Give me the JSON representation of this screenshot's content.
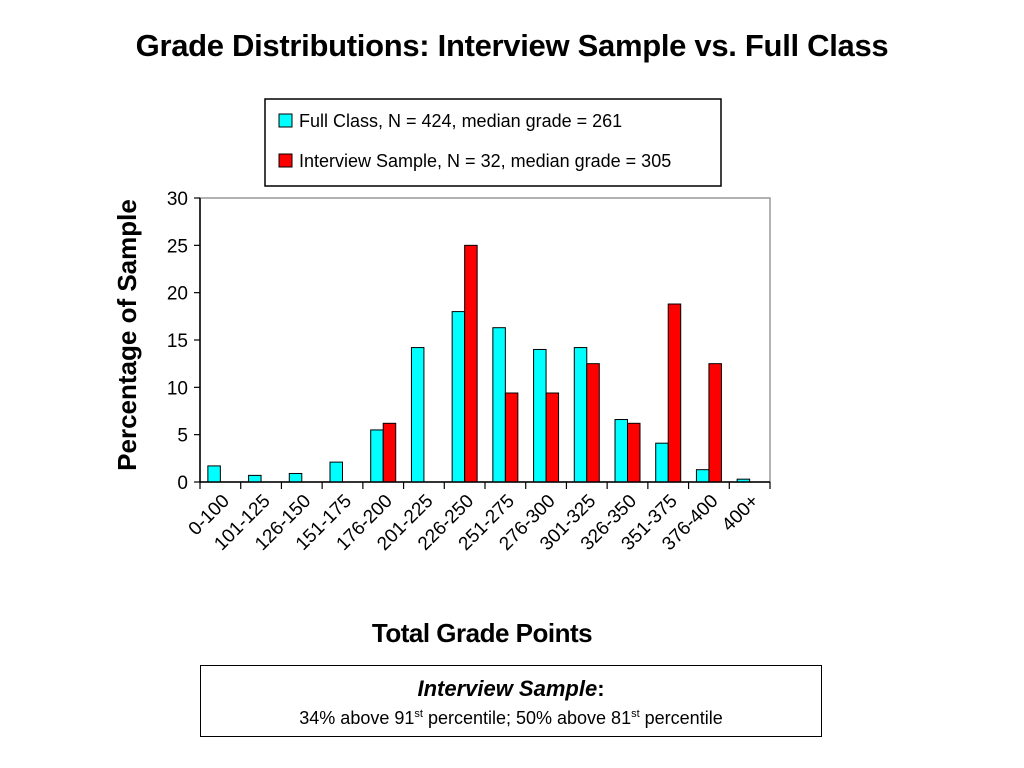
{
  "slide": {
    "title": "Grade Distributions: Interview Sample vs. Full Class"
  },
  "note": {
    "heading": "Interview Sample",
    "heading_colon": ":",
    "part1": "34% above 91",
    "sup1": "st",
    "part2": " percentile; 50% above 81",
    "sup2": "st",
    "part3": " percentile"
  },
  "chart_data": {
    "type": "bar",
    "title": "",
    "xlabel": "Total Grade Points",
    "ylabel": "Percentage of Sample",
    "ylim": [
      0,
      30
    ],
    "yticks": [
      0,
      5,
      10,
      15,
      20,
      25,
      30
    ],
    "grid": false,
    "legend_position": "top",
    "categories": [
      "0-100",
      "101-125",
      "126-150",
      "151-175",
      "176-200",
      "201-225",
      "226-250",
      "251-275",
      "276-300",
      "301-325",
      "326-350",
      "351-375",
      "376-400",
      "400+"
    ],
    "series": [
      {
        "name": "Full Class, N = 424, median grade = 261",
        "color": "#00FFFF",
        "values": [
          1.7,
          0.7,
          0.9,
          2.1,
          5.5,
          14.2,
          18.0,
          16.3,
          14.0,
          14.2,
          6.6,
          4.1,
          1.3,
          0.3
        ]
      },
      {
        "name": "Interview Sample, N = 32, median grade = 305",
        "color": "#FF0000",
        "values": [
          0,
          0,
          0,
          0,
          6.2,
          0,
          25.0,
          9.4,
          9.4,
          12.5,
          6.2,
          18.8,
          12.5,
          0
        ]
      }
    ]
  }
}
